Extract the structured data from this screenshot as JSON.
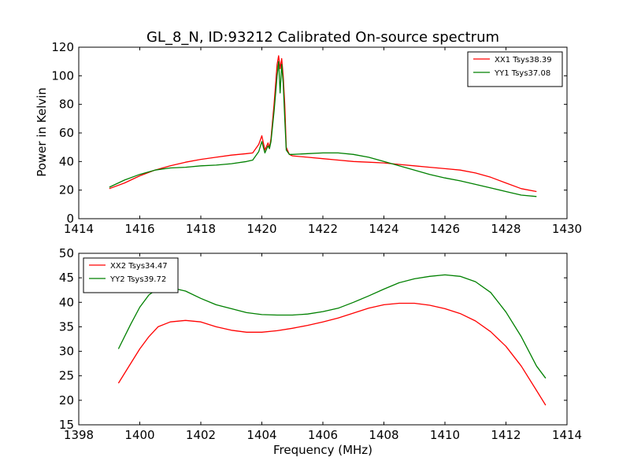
{
  "figure": {
    "title": "GL_8_N, ID:93212 Calibrated On-source spectrum",
    "ylabel": "Power in Kelvin",
    "xlabel": "Frequency (MHz)"
  },
  "chart_data": [
    {
      "type": "line",
      "title": "GL_8_N, ID:93212 Calibrated On-source spectrum",
      "ylabel": "Power in Kelvin",
      "xlabel": "",
      "xlim": [
        1414,
        1430
      ],
      "ylim": [
        0,
        120
      ],
      "xticks": [
        1414,
        1416,
        1418,
        1420,
        1422,
        1424,
        1426,
        1428,
        1430
      ],
      "yticks": [
        0,
        20,
        40,
        60,
        80,
        100,
        120
      ],
      "legend": "top-right",
      "grid": false,
      "series": [
        {
          "name": "XX1 Tsys38.39",
          "color": "#ff0000",
          "x": [
            1415.0,
            1415.5,
            1416.0,
            1416.5,
            1417.0,
            1417.5,
            1418.0,
            1418.5,
            1419.0,
            1419.5,
            1419.7,
            1419.9,
            1420.0,
            1420.1,
            1420.2,
            1420.25,
            1420.3,
            1420.4,
            1420.5,
            1420.55,
            1420.6,
            1420.65,
            1420.7,
            1420.75,
            1420.8,
            1420.9,
            1421.0,
            1421.5,
            1422.0,
            1422.5,
            1423.0,
            1423.5,
            1424.0,
            1424.5,
            1425.0,
            1425.5,
            1426.0,
            1426.5,
            1427.0,
            1427.5,
            1428.0,
            1428.5,
            1429.0
          ],
          "y": [
            21,
            25,
            30,
            34,
            37,
            39.5,
            41.5,
            43,
            44.5,
            45.5,
            46,
            52,
            58,
            48,
            53,
            50,
            56,
            80,
            108,
            114,
            105,
            112,
            100,
            80,
            50,
            45,
            44,
            43,
            42,
            41,
            40,
            39.5,
            39,
            38,
            37,
            36,
            35,
            34,
            32,
            29,
            25,
            21,
            19
          ]
        },
        {
          "name": "YY1 Tsys37.08",
          "color": "#008000",
          "x": [
            1415.0,
            1415.5,
            1416.0,
            1416.5,
            1417.0,
            1417.5,
            1418.0,
            1418.5,
            1419.0,
            1419.5,
            1419.7,
            1419.9,
            1420.0,
            1420.1,
            1420.2,
            1420.25,
            1420.3,
            1420.4,
            1420.5,
            1420.55,
            1420.6,
            1420.65,
            1420.7,
            1420.75,
            1420.8,
            1420.9,
            1421.0,
            1421.5,
            1422.0,
            1422.5,
            1423.0,
            1423.5,
            1424.0,
            1424.5,
            1425.0,
            1425.5,
            1426.0,
            1426.5,
            1427.0,
            1427.5,
            1428.0,
            1428.5,
            1429.0
          ],
          "y": [
            22,
            27,
            31,
            34,
            35.5,
            36,
            37,
            37.5,
            38.5,
            40,
            41,
            47,
            54,
            46,
            51,
            49,
            54,
            75,
            100,
            110,
            88,
            108,
            95,
            70,
            48,
            45,
            45,
            45.5,
            46,
            46,
            45,
            43,
            40,
            37,
            34,
            31,
            28.5,
            26.5,
            24,
            21.5,
            19,
            16.5,
            15.5
          ]
        }
      ]
    },
    {
      "type": "line",
      "title": "",
      "ylabel": "",
      "xlabel": "Frequency (MHz)",
      "xlim": [
        1398,
        1414
      ],
      "ylim": [
        15,
        50
      ],
      "xticks": [
        1398,
        1400,
        1402,
        1404,
        1406,
        1408,
        1410,
        1412,
        1414
      ],
      "yticks": [
        15,
        20,
        25,
        30,
        35,
        40,
        45,
        50
      ],
      "legend": "top-left",
      "grid": false,
      "series": [
        {
          "name": "XX2 Tsys34.47",
          "color": "#ff0000",
          "x": [
            1399.3,
            1399.7,
            1400.0,
            1400.3,
            1400.6,
            1401.0,
            1401.5,
            1402.0,
            1402.5,
            1403.0,
            1403.5,
            1404.0,
            1404.5,
            1405.0,
            1405.5,
            1406.0,
            1406.5,
            1407.0,
            1407.5,
            1408.0,
            1408.5,
            1409.0,
            1409.5,
            1410.0,
            1410.5,
            1411.0,
            1411.5,
            1412.0,
            1412.5,
            1413.0,
            1413.3
          ],
          "y": [
            23.5,
            27.5,
            30.5,
            33,
            35,
            36,
            36.3,
            36,
            35,
            34.3,
            33.9,
            33.9,
            34.2,
            34.7,
            35.3,
            36,
            36.8,
            37.8,
            38.8,
            39.5,
            39.8,
            39.8,
            39.4,
            38.7,
            37.7,
            36.2,
            34,
            31,
            27,
            22,
            19
          ]
        },
        {
          "name": "YY2 Tsys39.72",
          "color": "#008000",
          "x": [
            1399.3,
            1399.7,
            1400.0,
            1400.3,
            1400.6,
            1401.0,
            1401.5,
            1402.0,
            1402.5,
            1403.0,
            1403.5,
            1404.0,
            1404.5,
            1405.0,
            1405.5,
            1406.0,
            1406.5,
            1407.0,
            1407.5,
            1408.0,
            1408.5,
            1409.0,
            1409.5,
            1410.0,
            1410.5,
            1411.0,
            1411.5,
            1412.0,
            1412.5,
            1413.0,
            1413.3
          ],
          "y": [
            30.5,
            35.5,
            39,
            41.5,
            42.8,
            43,
            42.3,
            40.8,
            39.5,
            38.7,
            37.9,
            37.5,
            37.4,
            37.4,
            37.6,
            38.1,
            38.8,
            40,
            41.3,
            42.7,
            44,
            44.8,
            45.3,
            45.6,
            45.3,
            44.2,
            42,
            38,
            33,
            27,
            24.5
          ]
        }
      ]
    }
  ]
}
